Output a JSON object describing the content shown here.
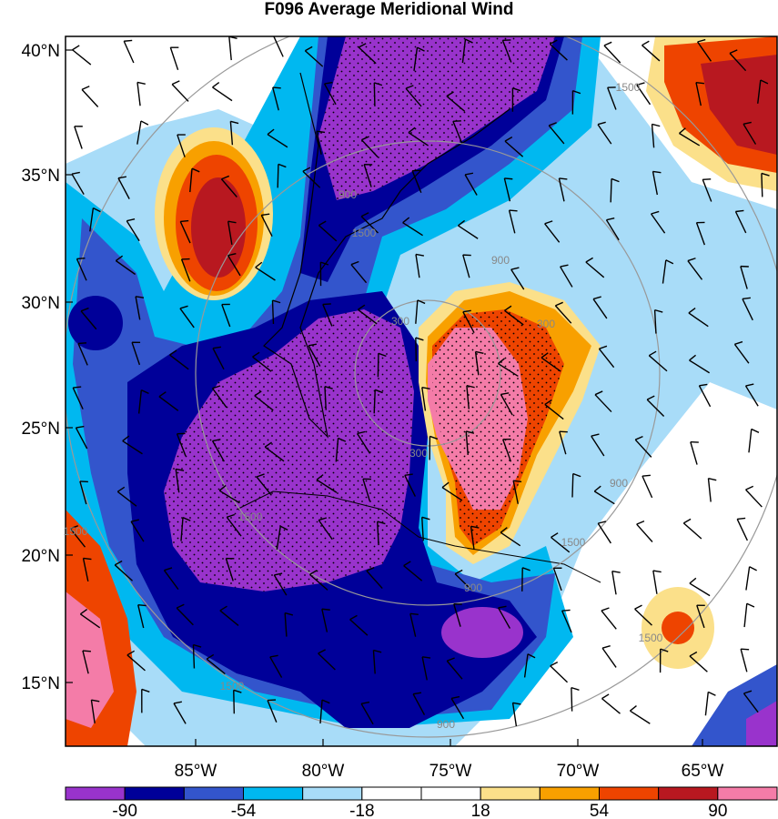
{
  "title": "F096 Average Meridional Wind",
  "lat_labels": [
    "40°N",
    "35°N",
    "30°N",
    "25°N",
    "20°N",
    "15°N"
  ],
  "lon_labels": [
    "85°W",
    "80°W",
    "75°W",
    "70°W",
    "65°W"
  ],
  "contour_labels": [
    "1500",
    "900",
    "300",
    "300",
    "900",
    "1500",
    "900",
    "1500",
    "1500",
    "1500",
    "1500",
    "900",
    "300",
    "1500",
    "900"
  ],
  "colorbar": {
    "colors": [
      "#9933cc",
      "#000099",
      "#3355cc",
      "#00b8f0",
      "#a8dcf8",
      "#ffffff",
      "#ffffff",
      "#fbe08a",
      "#f8a000",
      "#ee4400",
      "#b81820",
      "#f47ca8"
    ],
    "labels": [
      "-90",
      "-54",
      "-18",
      "18",
      "54",
      "90"
    ]
  }
}
